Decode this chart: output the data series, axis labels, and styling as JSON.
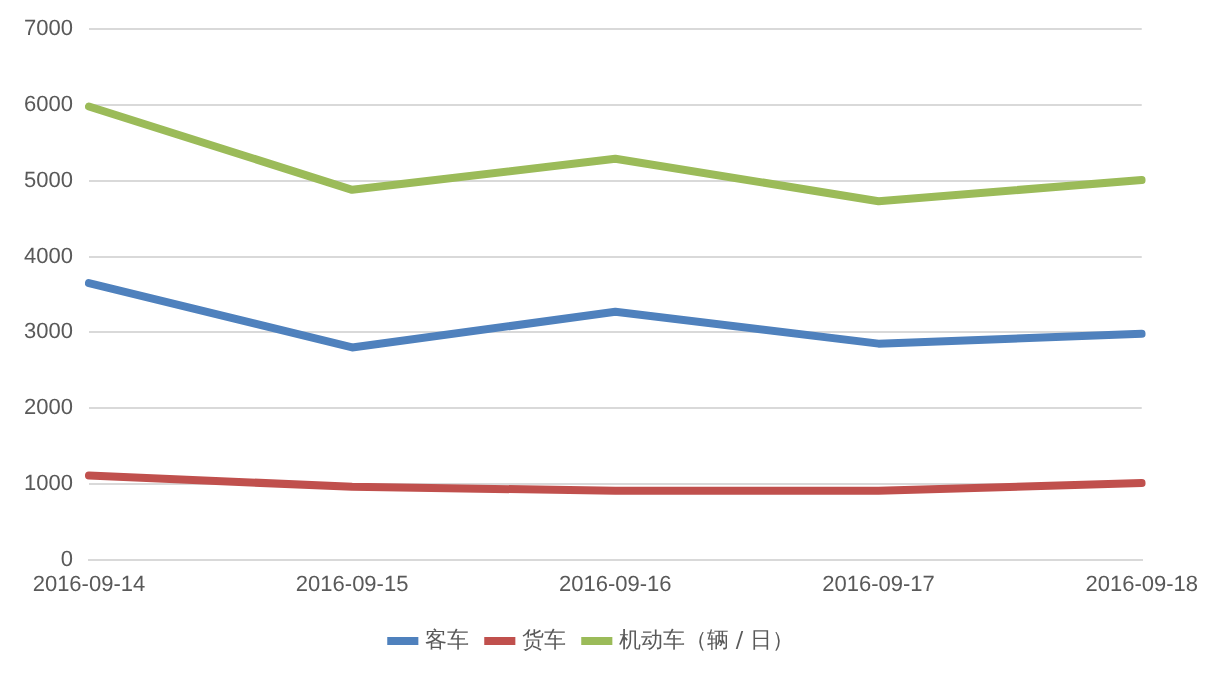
{
  "chart_data": {
    "type": "line",
    "categories": [
      "2016-09-14",
      "2016-09-15",
      "2016-09-16",
      "2016-09-17",
      "2016-09-18"
    ],
    "series": [
      {
        "name": "客车",
        "color": "#4f81bd",
        "values": [
          3650,
          2800,
          3270,
          2850,
          2980
        ]
      },
      {
        "name": "货车",
        "color": "#c0504d",
        "values": [
          1110,
          960,
          910,
          910,
          1010
        ]
      },
      {
        "name": "机动车（辆 / 日）",
        "color": "#9bbb59",
        "values": [
          5980,
          4880,
          5290,
          4730,
          5010
        ]
      }
    ],
    "ylim": [
      0,
      7000
    ],
    "yticks": [
      0,
      1000,
      2000,
      3000,
      4000,
      5000,
      6000,
      7000
    ],
    "grid": "y",
    "legend": "bottom"
  }
}
